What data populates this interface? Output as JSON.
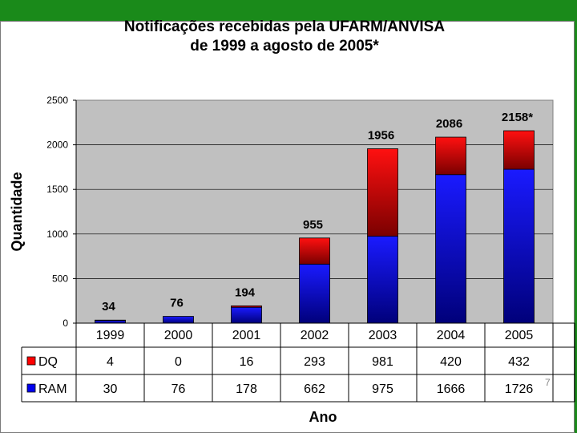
{
  "chart_data": {
    "type": "bar",
    "stacked": true,
    "title_line1": "Notificações recebidas pela UFARM/ANVISA",
    "title_line2": "de 1999 a agosto de 2005*",
    "ylabel": "Quantidade",
    "xlabel": "Ano",
    "ylim": [
      0,
      2500
    ],
    "yticks": [
      "0",
      "500",
      "1000",
      "1500",
      "2000",
      "2500"
    ],
    "categories": [
      "1999",
      "2000",
      "2001",
      "2002",
      "2003",
      "2004",
      "2005"
    ],
    "totals_labels": [
      "34",
      "76",
      "194",
      "955",
      "1956",
      "2086",
      "2158*"
    ],
    "series": [
      {
        "name": "DQ",
        "values": [
          4,
          0,
          16,
          293,
          981,
          420,
          432
        ],
        "labels": [
          "4",
          "0",
          "16",
          "293",
          "981",
          "420",
          "432"
        ],
        "color": "#ff0000"
      },
      {
        "name": "RAM",
        "values": [
          30,
          76,
          178,
          662,
          975,
          1666,
          1726
        ],
        "labels": [
          "30",
          "76",
          "178",
          "662",
          "975",
          "1666",
          "1726"
        ],
        "color": "#0000ee"
      }
    ],
    "grid": true,
    "legend": "data-table",
    "plot_bg": "#c0c0c0"
  },
  "page_number": "7"
}
